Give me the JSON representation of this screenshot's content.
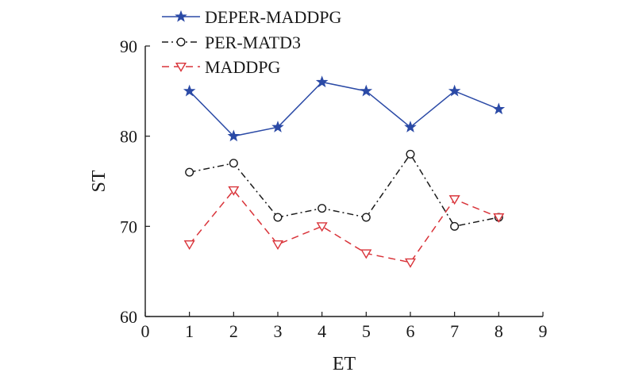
{
  "chart_data": {
    "type": "line",
    "xlabel": "ET",
    "ylabel": "ST",
    "xlim": [
      0,
      9
    ],
    "ylim": [
      60,
      90
    ],
    "xticks": [
      "0",
      "1",
      "2",
      "3",
      "4",
      "5",
      "6",
      "7",
      "8",
      "9"
    ],
    "yticks": [
      "60",
      "70",
      "80",
      "90"
    ],
    "grid": false,
    "legend": "top-left, outside above plot",
    "x": [
      1,
      2,
      3,
      4,
      5,
      6,
      7,
      8
    ],
    "series": [
      {
        "name": "DEPER-MADDPG",
        "values": [
          85,
          80,
          81,
          86,
          85,
          81,
          85,
          83
        ],
        "color": "#2b4aa6",
        "line_style": "solid",
        "marker": "star-icon"
      },
      {
        "name": "PER-MATD3",
        "values": [
          76,
          77,
          71,
          72,
          71,
          78,
          70,
          71
        ],
        "color": "#1a1a1a",
        "line_style": "dash-dot",
        "marker": "circle-icon"
      },
      {
        "name": "MADDPG",
        "values": [
          68,
          74,
          68,
          70,
          67,
          66,
          73,
          71
        ],
        "color": "#d9343a",
        "line_style": "dashed",
        "marker": "triangle-down-icon"
      }
    ]
  }
}
